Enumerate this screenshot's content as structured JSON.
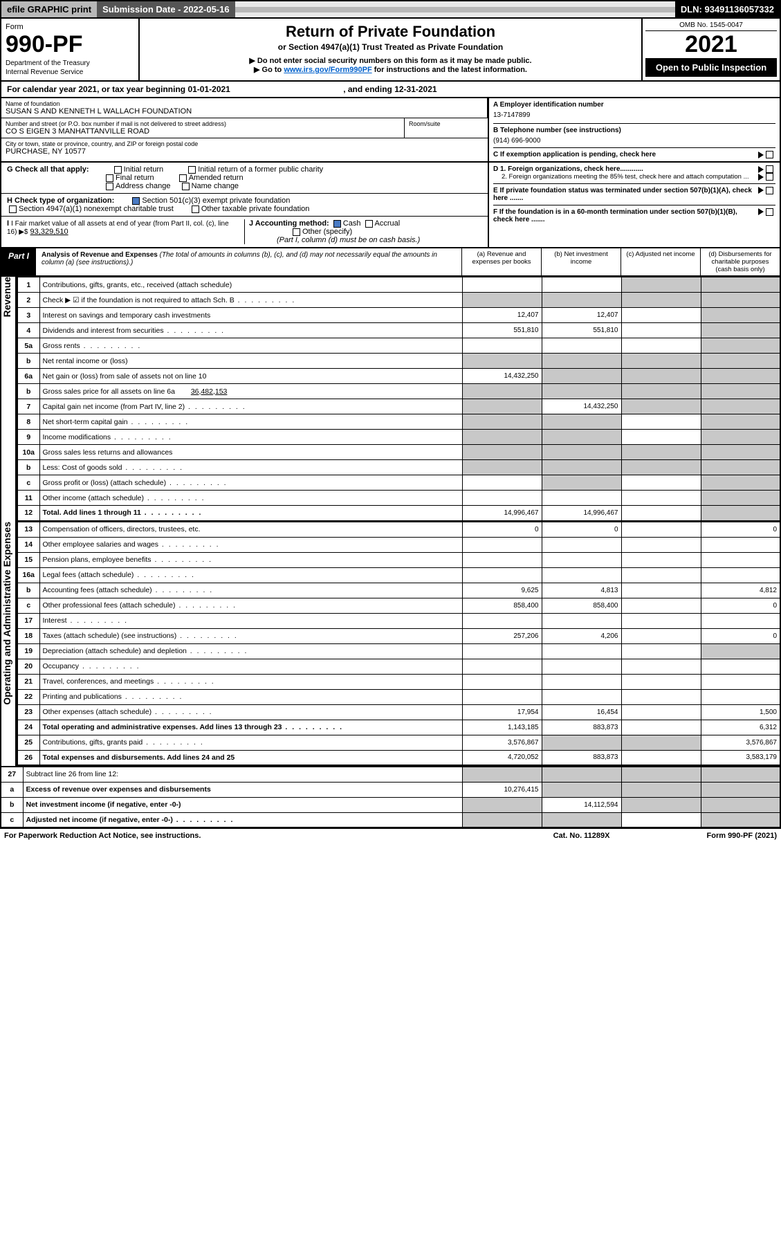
{
  "topbar": {
    "efile": "efile GRAPHIC print",
    "submission_label": "Submission Date - 2022-05-16",
    "dln": "DLN: 93491136057332"
  },
  "header": {
    "form_word": "Form",
    "form_num": "990-PF",
    "dept": "Department of the Treasury",
    "irs": "Internal Revenue Service",
    "title": "Return of Private Foundation",
    "subtitle": "or Section 4947(a)(1) Trust Treated as Private Foundation",
    "note1": "▶ Do not enter social security numbers on this form as it may be made public.",
    "note2_pre": "▶ Go to ",
    "note2_link": "www.irs.gov/Form990PF",
    "note2_post": " for instructions and the latest information.",
    "omb": "OMB No. 1545-0047",
    "year": "2021",
    "open": "Open to Public Inspection"
  },
  "calendar": {
    "pre": "For calendar year 2021, or tax year beginning ",
    "begin": "01-01-2021",
    "mid": ", and ending ",
    "end": "12-31-2021"
  },
  "ident": {
    "name_lbl": "Name of foundation",
    "name": "SUSAN S AND KENNETH L WALLACH FOUNDATION",
    "ein_lbl": "A Employer identification number",
    "ein": "13-7147899",
    "addr_lbl": "Number and street (or P.O. box number if mail is not delivered to street address)",
    "addr": "CO S EIGEN 3 MANHATTANVILLE ROAD",
    "room_lbl": "Room/suite",
    "tel_lbl": "B Telephone number (see instructions)",
    "tel": "(914) 696-9000",
    "city_lbl": "City or town, state or province, country, and ZIP or foreign postal code",
    "city": "PURCHASE, NY  10577",
    "c_lbl": "C If exemption application is pending, check here"
  },
  "checks": {
    "g_lbl": "G Check all that apply:",
    "g1": "Initial return",
    "g2": "Initial return of a former public charity",
    "g3": "Final return",
    "g4": "Amended return",
    "g5": "Address change",
    "g6": "Name change",
    "h_lbl": "H Check type of organization:",
    "h1": "Section 501(c)(3) exempt private foundation",
    "h2": "Section 4947(a)(1) nonexempt charitable trust",
    "h3": "Other taxable private foundation",
    "i_lbl": "I Fair market value of all assets at end of year (from Part II, col. (c), line 16) ▶$",
    "i_val": "93,329,510",
    "j_lbl": "J Accounting method:",
    "j1": "Cash",
    "j2": "Accrual",
    "j3": "Other (specify)",
    "j_note": "(Part I, column (d) must be on cash basis.)",
    "d1": "D 1. Foreign organizations, check here............",
    "d2": "2. Foreign organizations meeting the 85% test, check here and attach computation ...",
    "e_lbl": "E  If private foundation status was terminated under section 507(b)(1)(A), check here .......",
    "f_lbl": "F  If the foundation is in a 60-month termination under section 507(b)(1)(B), check here ......."
  },
  "part1": {
    "label": "Part I",
    "title": "Analysis of Revenue and Expenses",
    "title_note": "(The total of amounts in columns (b), (c), and (d) may not necessarily equal the amounts in column (a) (see instructions).)",
    "col_a": "(a)   Revenue and expenses per books",
    "col_b": "(b)   Net investment income",
    "col_c": "(c)   Adjusted net income",
    "col_d": "(d)   Disbursements for charitable purposes (cash basis only)"
  },
  "vlabels": {
    "revenue": "Revenue",
    "oae": "Operating and Administrative Expenses"
  },
  "rows": {
    "r1": {
      "n": "1",
      "d": "Contributions, gifts, grants, etc., received (attach schedule)",
      "a": "",
      "b": "",
      "c": "",
      "dd": "",
      "sd": "cd"
    },
    "r2": {
      "n": "2",
      "d": "Check ▶ ☑ if the foundation is not required to attach Sch. B",
      "a": "",
      "b": "",
      "c": "",
      "dd": "",
      "sd": "abcd",
      "dots": true
    },
    "r3": {
      "n": "3",
      "d": "Interest on savings and temporary cash investments",
      "a": "12,407",
      "b": "12,407",
      "c": "",
      "dd": "",
      "sd": "d"
    },
    "r4": {
      "n": "4",
      "d": "Dividends and interest from securities",
      "a": "551,810",
      "b": "551,810",
      "c": "",
      "dd": "",
      "sd": "d",
      "dots": true
    },
    "r5a": {
      "n": "5a",
      "d": "Gross rents",
      "a": "",
      "b": "",
      "c": "",
      "dd": "",
      "sd": "d",
      "dots": true
    },
    "r5b": {
      "n": "b",
      "d": "Net rental income or (loss)",
      "a": "",
      "b": "",
      "c": "",
      "dd": "",
      "sd": "abcd"
    },
    "r6a": {
      "n": "6a",
      "d": "Net gain or (loss) from sale of assets not on line 10",
      "a": "14,432,250",
      "b": "",
      "c": "",
      "dd": "",
      "sd": "bcd"
    },
    "r6b": {
      "n": "b",
      "d": "Gross sales price for all assets on line 6a",
      "v": "36,482,153",
      "a": "",
      "b": "",
      "c": "",
      "dd": "",
      "sd": "abcd"
    },
    "r7": {
      "n": "7",
      "d": "Capital gain net income (from Part IV, line 2)",
      "a": "",
      "b": "14,432,250",
      "c": "",
      "dd": "",
      "sd": "acd",
      "dots": true
    },
    "r8": {
      "n": "8",
      "d": "Net short-term capital gain",
      "a": "",
      "b": "",
      "c": "",
      "dd": "",
      "sd": "abd",
      "dots": true
    },
    "r9": {
      "n": "9",
      "d": "Income modifications",
      "a": "",
      "b": "",
      "c": "",
      "dd": "",
      "sd": "abd",
      "dots": true
    },
    "r10a": {
      "n": "10a",
      "d": "Gross sales less returns and allowances",
      "a": "",
      "b": "",
      "c": "",
      "dd": "",
      "sd": "abcd"
    },
    "r10b": {
      "n": "b",
      "d": "Less: Cost of goods sold",
      "a": "",
      "b": "",
      "c": "",
      "dd": "",
      "sd": "abcd",
      "dots": true
    },
    "r10c": {
      "n": "c",
      "d": "Gross profit or (loss) (attach schedule)",
      "a": "",
      "b": "",
      "c": "",
      "dd": "",
      "sd": "bd",
      "dots": true
    },
    "r11": {
      "n": "11",
      "d": "Other income (attach schedule)",
      "a": "",
      "b": "",
      "c": "",
      "dd": "",
      "sd": "d",
      "dots": true
    },
    "r12": {
      "n": "12",
      "d": "Total. Add lines 1 through 11",
      "a": "14,996,467",
      "b": "14,996,467",
      "c": "",
      "dd": "",
      "sd": "d",
      "dots": true,
      "bold": true
    },
    "r13": {
      "n": "13",
      "d": "Compensation of officers, directors, trustees, etc.",
      "a": "0",
      "b": "0",
      "c": "",
      "dd": "0"
    },
    "r14": {
      "n": "14",
      "d": "Other employee salaries and wages",
      "a": "",
      "b": "",
      "c": "",
      "dd": "",
      "dots": true
    },
    "r15": {
      "n": "15",
      "d": "Pension plans, employee benefits",
      "a": "",
      "b": "",
      "c": "",
      "dd": "",
      "dots": true
    },
    "r16a": {
      "n": "16a",
      "d": "Legal fees (attach schedule)",
      "a": "",
      "b": "",
      "c": "",
      "dd": "",
      "dots": true
    },
    "r16b": {
      "n": "b",
      "d": "Accounting fees (attach schedule)",
      "a": "9,625",
      "b": "4,813",
      "c": "",
      "dd": "4,812",
      "dots": true
    },
    "r16c": {
      "n": "c",
      "d": "Other professional fees (attach schedule)",
      "a": "858,400",
      "b": "858,400",
      "c": "",
      "dd": "0",
      "dots": true
    },
    "r17": {
      "n": "17",
      "d": "Interest",
      "a": "",
      "b": "",
      "c": "",
      "dd": "",
      "dots": true
    },
    "r18": {
      "n": "18",
      "d": "Taxes (attach schedule) (see instructions)",
      "a": "257,206",
      "b": "4,206",
      "c": "",
      "dd": "0",
      "dots": true
    },
    "r19": {
      "n": "19",
      "d": "Depreciation (attach schedule) and depletion",
      "a": "",
      "b": "",
      "c": "",
      "dd": "",
      "sd": "d",
      "dots": true
    },
    "r20": {
      "n": "20",
      "d": "Occupancy",
      "a": "",
      "b": "",
      "c": "",
      "dd": "",
      "dots": true
    },
    "r21": {
      "n": "21",
      "d": "Travel, conferences, and meetings",
      "a": "",
      "b": "",
      "c": "",
      "dd": "",
      "dots": true
    },
    "r22": {
      "n": "22",
      "d": "Printing and publications",
      "a": "",
      "b": "",
      "c": "",
      "dd": "",
      "dots": true
    },
    "r23": {
      "n": "23",
      "d": "Other expenses (attach schedule)",
      "a": "17,954",
      "b": "16,454",
      "c": "",
      "dd": "1,500",
      "dots": true
    },
    "r24": {
      "n": "24",
      "d": "Total operating and administrative expenses. Add lines 13 through 23",
      "a": "1,143,185",
      "b": "883,873",
      "c": "",
      "dd": "6,312",
      "dots": true,
      "bold": true
    },
    "r25": {
      "n": "25",
      "d": "Contributions, gifts, grants paid",
      "a": "3,576,867",
      "b": "",
      "c": "",
      "dd": "3,576,867",
      "sd": "bc",
      "dots": true
    },
    "r26": {
      "n": "26",
      "d": "Total expenses and disbursements. Add lines 24 and 25",
      "a": "4,720,052",
      "b": "883,873",
      "c": "",
      "dd": "3,583,179",
      "bold": true
    },
    "r27": {
      "n": "27",
      "d": "Subtract line 26 from line 12:",
      "a": "",
      "b": "",
      "c": "",
      "dd": "",
      "sd": "abcd"
    },
    "r27a": {
      "n": "a",
      "d": "Excess of revenue over expenses and disbursements",
      "a": "10,276,415",
      "b": "",
      "c": "",
      "dd": "",
      "sd": "bcd",
      "bold": true
    },
    "r27b": {
      "n": "b",
      "d": "Net investment income (if negative, enter -0-)",
      "a": "",
      "b": "14,112,594",
      "c": "",
      "dd": "",
      "sd": "acd",
      "bold": true
    },
    "r27c": {
      "n": "c",
      "d": "Adjusted net income (if negative, enter -0-)",
      "a": "",
      "b": "",
      "c": "",
      "dd": "",
      "sd": "abd",
      "bold": true,
      "dots": true
    }
  },
  "footer": {
    "left": "For Paperwork Reduction Act Notice, see instructions.",
    "mid": "Cat. No. 11289X",
    "right": "Form 990-PF (2021)"
  }
}
